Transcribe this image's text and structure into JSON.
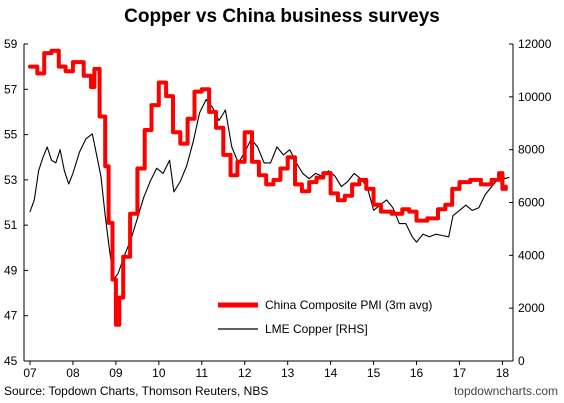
{
  "chart_data": {
    "type": "line",
    "title": "Copper vs China business surveys",
    "x_ticks": [
      "07",
      "08",
      "09",
      "10",
      "11",
      "12",
      "13",
      "14",
      "15",
      "16",
      "17",
      "18"
    ],
    "y_left": {
      "min": 45,
      "max": 59,
      "ticks": [
        "45",
        "47",
        "49",
        "51",
        "53",
        "55",
        "57",
        "59"
      ]
    },
    "y_right": {
      "min": 0,
      "max": 12000,
      "ticks": [
        "0",
        "2000",
        "4000",
        "6000",
        "8000",
        "10000",
        "12000"
      ]
    },
    "series": [
      {
        "name": "China Composite PMI (3m avg)",
        "color": "#ff0000",
        "axis": "left",
        "step": true,
        "points": [
          [
            2007.0,
            58.0
          ],
          [
            2007.17,
            57.7
          ],
          [
            2007.33,
            58.6
          ],
          [
            2007.5,
            58.7
          ],
          [
            2007.67,
            58.0
          ],
          [
            2007.83,
            57.8
          ],
          [
            2008.0,
            58.2
          ],
          [
            2008.25,
            57.6
          ],
          [
            2008.42,
            57.1
          ],
          [
            2008.5,
            57.9
          ],
          [
            2008.62,
            55.8
          ],
          [
            2008.75,
            53.6
          ],
          [
            2008.83,
            51.1
          ],
          [
            2008.92,
            48.6
          ],
          [
            2009.0,
            46.6
          ],
          [
            2009.08,
            47.8
          ],
          [
            2009.17,
            49.6
          ],
          [
            2009.33,
            51.5
          ],
          [
            2009.5,
            53.5
          ],
          [
            2009.67,
            55.2
          ],
          [
            2009.83,
            56.3
          ],
          [
            2010.0,
            57.3
          ],
          [
            2010.17,
            56.7
          ],
          [
            2010.33,
            55.1
          ],
          [
            2010.5,
            54.6
          ],
          [
            2010.67,
            55.7
          ],
          [
            2010.83,
            56.9
          ],
          [
            2011.0,
            57.0
          ],
          [
            2011.17,
            56.0
          ],
          [
            2011.33,
            55.3
          ],
          [
            2011.5,
            54.1
          ],
          [
            2011.67,
            53.2
          ],
          [
            2011.83,
            53.8
          ],
          [
            2012.0,
            55.1
          ],
          [
            2012.17,
            53.8
          ],
          [
            2012.33,
            53.2
          ],
          [
            2012.5,
            52.8
          ],
          [
            2012.67,
            53.0
          ],
          [
            2012.83,
            53.5
          ],
          [
            2013.0,
            54.0
          ],
          [
            2013.17,
            52.8
          ],
          [
            2013.33,
            52.5
          ],
          [
            2013.5,
            52.9
          ],
          [
            2013.67,
            53.1
          ],
          [
            2013.83,
            53.3
          ],
          [
            2014.0,
            52.4
          ],
          [
            2014.17,
            52.1
          ],
          [
            2014.33,
            52.3
          ],
          [
            2014.5,
            52.8
          ],
          [
            2014.67,
            53.0
          ],
          [
            2014.83,
            52.6
          ],
          [
            2015.0,
            51.9
          ],
          [
            2015.17,
            51.6
          ],
          [
            2015.42,
            51.5
          ],
          [
            2015.67,
            51.7
          ],
          [
            2015.83,
            51.6
          ],
          [
            2016.0,
            51.2
          ],
          [
            2016.25,
            51.3
          ],
          [
            2016.5,
            51.7
          ],
          [
            2016.67,
            51.9
          ],
          [
            2016.83,
            52.6
          ],
          [
            2017.0,
            52.9
          ],
          [
            2017.25,
            53.0
          ],
          [
            2017.5,
            52.8
          ],
          [
            2017.75,
            53.0
          ],
          [
            2017.92,
            53.3
          ],
          [
            2018.0,
            52.6
          ],
          [
            2018.08,
            52.7
          ]
        ]
      },
      {
        "name": "LME Copper [RHS]",
        "color": "#000000",
        "axis": "right",
        "step": false,
        "points": [
          [
            2007.0,
            5650
          ],
          [
            2007.1,
            6100
          ],
          [
            2007.2,
            7200
          ],
          [
            2007.3,
            7700
          ],
          [
            2007.4,
            8100
          ],
          [
            2007.5,
            7600
          ],
          [
            2007.6,
            7500
          ],
          [
            2007.7,
            8000
          ],
          [
            2007.8,
            7200
          ],
          [
            2007.9,
            6700
          ],
          [
            2008.0,
            7100
          ],
          [
            2008.15,
            7900
          ],
          [
            2008.3,
            8400
          ],
          [
            2008.45,
            8600
          ],
          [
            2008.55,
            7800
          ],
          [
            2008.65,
            7000
          ],
          [
            2008.75,
            5500
          ],
          [
            2008.85,
            4200
          ],
          [
            2008.95,
            3100
          ],
          [
            2009.05,
            3300
          ],
          [
            2009.2,
            4000
          ],
          [
            2009.35,
            4600
          ],
          [
            2009.5,
            5400
          ],
          [
            2009.65,
            6200
          ],
          [
            2009.8,
            6800
          ],
          [
            2009.95,
            7300
          ],
          [
            2010.1,
            7100
          ],
          [
            2010.25,
            7600
          ],
          [
            2010.35,
            6400
          ],
          [
            2010.5,
            6800
          ],
          [
            2010.65,
            7400
          ],
          [
            2010.8,
            8300
          ],
          [
            2010.95,
            9400
          ],
          [
            2011.1,
            9900
          ],
          [
            2011.25,
            9600
          ],
          [
            2011.4,
            9100
          ],
          [
            2011.55,
            9500
          ],
          [
            2011.7,
            8100
          ],
          [
            2011.85,
            7500
          ],
          [
            2012.0,
            7900
          ],
          [
            2012.15,
            8400
          ],
          [
            2012.3,
            8100
          ],
          [
            2012.45,
            7500
          ],
          [
            2012.6,
            7500
          ],
          [
            2012.75,
            8100
          ],
          [
            2012.9,
            7800
          ],
          [
            2013.05,
            8000
          ],
          [
            2013.2,
            7500
          ],
          [
            2013.35,
            7100
          ],
          [
            2013.5,
            6900
          ],
          [
            2013.65,
            7100
          ],
          [
            2013.8,
            7000
          ],
          [
            2013.95,
            7200
          ],
          [
            2014.1,
            7000
          ],
          [
            2014.25,
            6600
          ],
          [
            2014.4,
            6800
          ],
          [
            2014.55,
            7100
          ],
          [
            2014.7,
            6900
          ],
          [
            2014.85,
            6600
          ],
          [
            2015.0,
            5700
          ],
          [
            2015.15,
            5900
          ],
          [
            2015.3,
            6100
          ],
          [
            2015.45,
            5800
          ],
          [
            2015.6,
            5200
          ],
          [
            2015.75,
            5200
          ],
          [
            2015.9,
            4700
          ],
          [
            2016.0,
            4500
          ],
          [
            2016.15,
            4800
          ],
          [
            2016.3,
            4700
          ],
          [
            2016.45,
            4800
          ],
          [
            2016.6,
            4750
          ],
          [
            2016.75,
            4700
          ],
          [
            2016.85,
            5500
          ],
          [
            2017.0,
            5700
          ],
          [
            2017.15,
            5900
          ],
          [
            2017.3,
            5700
          ],
          [
            2017.45,
            5800
          ],
          [
            2017.6,
            6300
          ],
          [
            2017.75,
            6600
          ],
          [
            2017.9,
            6900
          ],
          [
            2018.0,
            7100
          ],
          [
            2018.05,
            6900
          ],
          [
            2018.15,
            6950
          ]
        ]
      }
    ],
    "source": "Source: Topdown Charts, Thomson Reuters, NBS",
    "watermark": "topdowncharts.com",
    "legend_position": "bottom-right",
    "grid": false
  }
}
